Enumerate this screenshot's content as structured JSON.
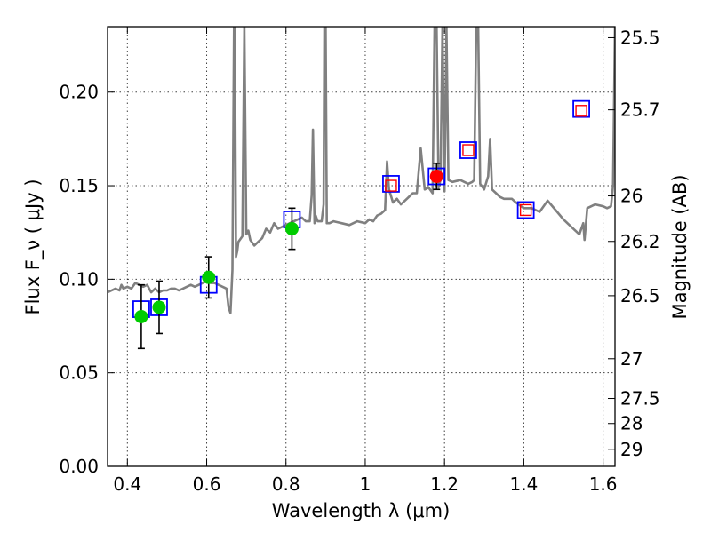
{
  "chart_data": {
    "type": "scatter",
    "title": "",
    "xlabel": "Wavelength  λ (μm)",
    "ylabel": "Flux  F_ν  ( μJy )",
    "ylabel_right": "Magnitude (AB)",
    "xlim": [
      0.35,
      1.63
    ],
    "ylim": [
      0.0,
      0.235
    ],
    "grid": true,
    "x_ticks": [
      {
        "value": 0.4,
        "label": "0.4"
      },
      {
        "value": 0.6,
        "label": "0.6"
      },
      {
        "value": 0.8,
        "label": "0.8"
      },
      {
        "value": 1.0,
        "label": "1"
      },
      {
        "value": 1.2,
        "label": "1.2"
      },
      {
        "value": 1.4,
        "label": "1.4"
      },
      {
        "value": 1.6,
        "label": "1.6"
      }
    ],
    "y_ticks": [
      {
        "value": 0.0,
        "label": "0.00"
      },
      {
        "value": 0.05,
        "label": "0.05"
      },
      {
        "value": 0.1,
        "label": "0.10"
      },
      {
        "value": 0.15,
        "label": "0.15"
      },
      {
        "value": 0.2,
        "label": "0.20"
      }
    ],
    "right_ticks": [
      {
        "value": 25.5,
        "label": "25.5"
      },
      {
        "value": 25.7,
        "label": "25.7"
      },
      {
        "value": 26,
        "label": "26"
      },
      {
        "value": 26.2,
        "label": "26.2"
      },
      {
        "value": 26.5,
        "label": "26.5"
      },
      {
        "value": 27,
        "label": "27"
      },
      {
        "value": 27.5,
        "label": "27.5"
      },
      {
        "value": 28,
        "label": "28"
      },
      {
        "value": 29,
        "label": "29"
      }
    ],
    "series": [
      {
        "name": "model spectrum",
        "kind": "line",
        "color": "#808080",
        "x": [
          0.35,
          0.36,
          0.37,
          0.38,
          0.385,
          0.39,
          0.4,
          0.41,
          0.42,
          0.43,
          0.44,
          0.45,
          0.46,
          0.47,
          0.48,
          0.49,
          0.5,
          0.51,
          0.52,
          0.53,
          0.54,
          0.55,
          0.56,
          0.57,
          0.58,
          0.59,
          0.6,
          0.61,
          0.62,
          0.63,
          0.64,
          0.65,
          0.655,
          0.66,
          0.665,
          0.669,
          0.671,
          0.674,
          0.677,
          0.68,
          0.69,
          0.695,
          0.7,
          0.705,
          0.71,
          0.72,
          0.73,
          0.74,
          0.75,
          0.76,
          0.77,
          0.78,
          0.8,
          0.82,
          0.84,
          0.85,
          0.86,
          0.865,
          0.868,
          0.872,
          0.875,
          0.88,
          0.89,
          0.895,
          0.897,
          0.9,
          0.903,
          0.91,
          0.92,
          0.94,
          0.96,
          0.98,
          1.0,
          1.01,
          1.02,
          1.03,
          1.04,
          1.05,
          1.055,
          1.06,
          1.07,
          1.08,
          1.09,
          1.1,
          1.12,
          1.13,
          1.135,
          1.14,
          1.15,
          1.16,
          1.17,
          1.175,
          1.18,
          1.185,
          1.19,
          1.195,
          1.2,
          1.205,
          1.21,
          1.22,
          1.24,
          1.26,
          1.27,
          1.275,
          1.28,
          1.285,
          1.29,
          1.3,
          1.31,
          1.315,
          1.32,
          1.33,
          1.34,
          1.35,
          1.37,
          1.38,
          1.4,
          1.42,
          1.44,
          1.46,
          1.48,
          1.5,
          1.52,
          1.54,
          1.55,
          1.553,
          1.56,
          1.58,
          1.6,
          1.61,
          1.62,
          1.625,
          1.63
        ],
        "y": [
          0.093,
          0.094,
          0.095,
          0.094,
          0.097,
          0.095,
          0.096,
          0.095,
          0.098,
          0.097,
          0.096,
          0.097,
          0.093,
          0.095,
          0.093,
          0.094,
          0.094,
          0.095,
          0.095,
          0.094,
          0.095,
          0.096,
          0.097,
          0.096,
          0.097,
          0.098,
          0.099,
          0.098,
          0.098,
          0.097,
          0.096,
          0.095,
          0.085,
          0.082,
          0.105,
          0.235,
          0.235,
          0.112,
          0.115,
          0.12,
          0.123,
          0.235,
          0.124,
          0.126,
          0.121,
          0.118,
          0.12,
          0.122,
          0.127,
          0.125,
          0.13,
          0.127,
          0.129,
          0.131,
          0.133,
          0.131,
          0.131,
          0.145,
          0.18,
          0.13,
          0.134,
          0.131,
          0.131,
          0.14,
          0.235,
          0.235,
          0.13,
          0.13,
          0.131,
          0.13,
          0.129,
          0.131,
          0.13,
          0.132,
          0.131,
          0.134,
          0.135,
          0.137,
          0.163,
          0.148,
          0.141,
          0.143,
          0.14,
          0.142,
          0.146,
          0.146,
          0.158,
          0.17,
          0.148,
          0.149,
          0.146,
          0.235,
          0.235,
          0.149,
          0.153,
          0.235,
          0.147,
          0.235,
          0.153,
          0.152,
          0.153,
          0.151,
          0.152,
          0.153,
          0.235,
          0.235,
          0.151,
          0.148,
          0.155,
          0.175,
          0.148,
          0.146,
          0.144,
          0.143,
          0.143,
          0.141,
          0.138,
          0.138,
          0.136,
          0.142,
          0.137,
          0.132,
          0.128,
          0.124,
          0.13,
          0.121,
          0.138,
          0.14,
          0.139,
          0.138,
          0.139,
          0.15,
          0.235
        ]
      },
      {
        "name": "blue squares",
        "kind": "square",
        "color": "#0000ff",
        "x": [
          0.435,
          0.48,
          0.605,
          0.815,
          1.065,
          1.18,
          1.26,
          1.405,
          1.545
        ],
        "y": [
          0.084,
          0.085,
          0.097,
          0.132,
          0.151,
          0.155,
          0.169,
          0.137,
          0.191
        ]
      },
      {
        "name": "red squares",
        "kind": "square",
        "color": "#ff0000",
        "x": [
          1.065,
          1.26,
          1.405,
          1.545
        ],
        "y": [
          0.15,
          0.169,
          0.137,
          0.19
        ]
      },
      {
        "name": "green points",
        "kind": "circle",
        "color": "#00cc00",
        "x": [
          0.435,
          0.48,
          0.605,
          0.815
        ],
        "y": [
          0.08,
          0.085,
          0.101,
          0.127
        ],
        "yerr": [
          0.017,
          0.014,
          0.011,
          0.011
        ]
      },
      {
        "name": "red point",
        "kind": "circle",
        "color": "#ff0000",
        "x": [
          1.18
        ],
        "y": [
          0.155
        ],
        "yerr": [
          0.007
        ]
      }
    ]
  }
}
